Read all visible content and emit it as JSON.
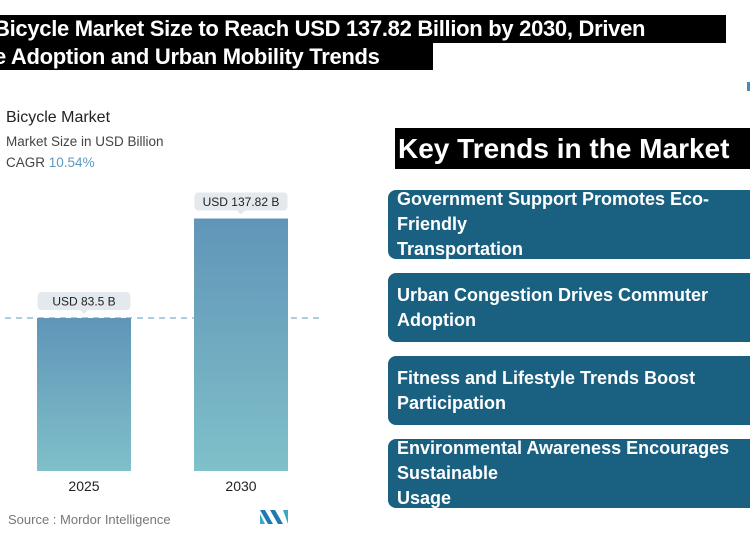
{
  "headline": {
    "line1": "Bicycle Market Size to Reach USD 137.82 Billion by 2030, Driven",
    "line2": "e Adoption and Urban Mobility Trends"
  },
  "chart_data": {
    "type": "bar",
    "title": "Bicycle Market",
    "subtitle": "Market Size in USD Billion",
    "cagr_label": "CAGR",
    "cagr_value": "10.54%",
    "categories": [
      "2025",
      "2030"
    ],
    "values": [
      83.5,
      137.82
    ],
    "data_labels": [
      "USD 83.5 B",
      "USD 137.82 B"
    ],
    "ylim": [
      0,
      140
    ],
    "grid": false,
    "reference_line": "dashed at 2025 value",
    "colors": {
      "bar_top": "#6095b8",
      "bar_bottom": "#7fc0c9",
      "label_bg": "#e3e9ec",
      "dash": "#5b9ac0"
    }
  },
  "source": "Source :  Mordor Intelligence",
  "logo_text": "MI",
  "key_trends": {
    "heading": "Key Trends in the Market",
    "items": [
      "Government Support Promotes Eco-Friendly\nTransportation",
      "Urban Congestion Drives Commuter Adoption",
      "Fitness and Lifestyle Trends Boost\nParticipation",
      "Environmental Awareness Encourages Sustainable\nUsage"
    ],
    "box_color": "#1a6080"
  }
}
